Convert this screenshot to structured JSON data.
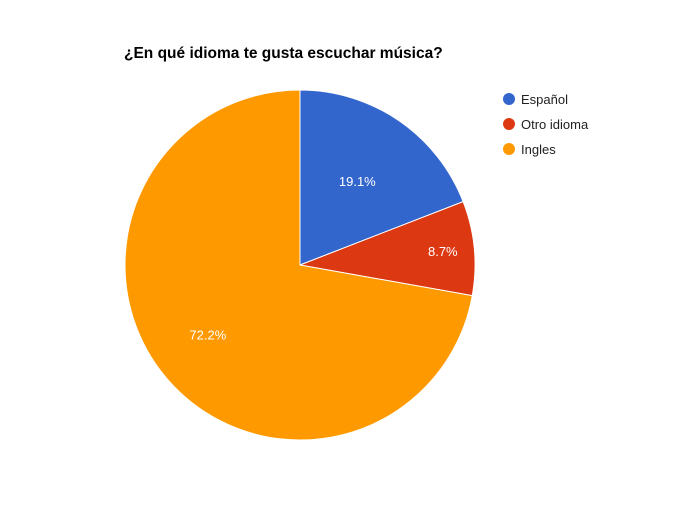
{
  "chart_data": {
    "type": "pie",
    "title": "¿En qué idioma te gusta escuchar música?",
    "categories": [
      "Español",
      "Otro idioma",
      "Ingles"
    ],
    "values": [
      19.1,
      8.7,
      72.2
    ],
    "labels": [
      "19.1%",
      "8.7%",
      "72.2%"
    ],
    "colors": [
      "#3366cc",
      "#dc3912",
      "#ff9900"
    ],
    "legend_position": "right"
  }
}
